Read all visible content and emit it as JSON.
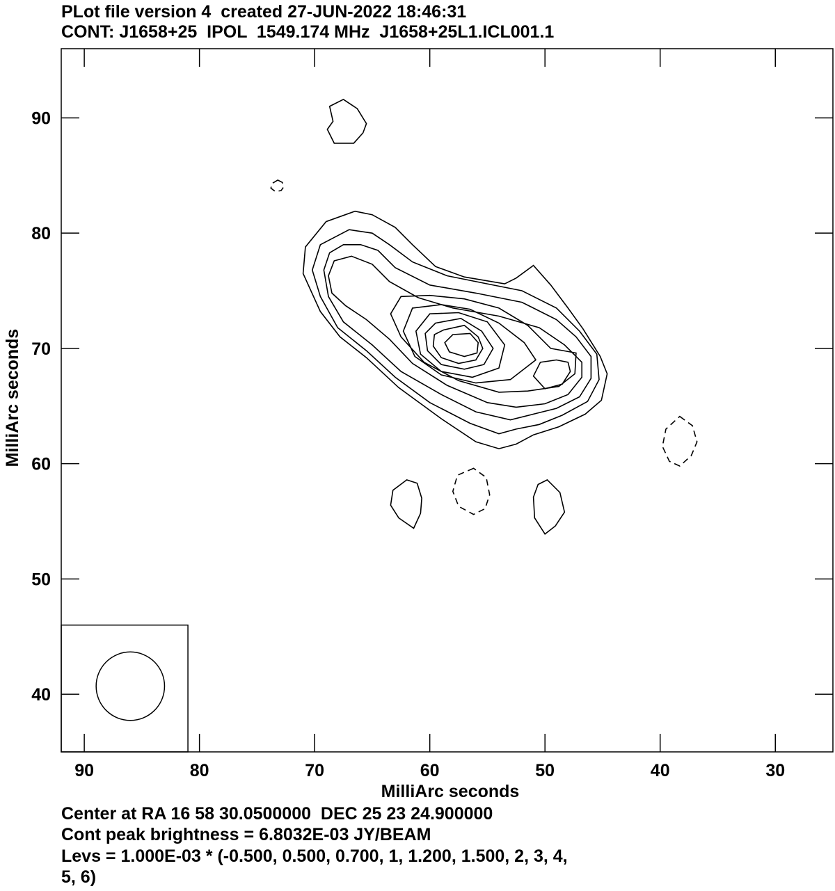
{
  "header": {
    "line1": "PLot file version 4  created 27-JUN-2022 18:46:31",
    "line2": "CONT: J1658+25  IPOL  1549.174 MHz  J1658+25L1.ICL001.1"
  },
  "footer": {
    "line1": "Center at RA 16 58 30.0500000  DEC 25 23 24.900000",
    "line2": "Cont peak brightness = 6.8032E-03 JY/BEAM",
    "line3": "Levs = 1.000E-03 * (-0.500, 0.500, 0.700, 1, 1.200, 1.500, 2, 3, 4,",
    "line4": "5, 6)"
  },
  "chart_data": {
    "type": "contour",
    "xlabel": "MilliArc seconds",
    "ylabel": "MilliArc seconds",
    "xlim": [
      92,
      25
    ],
    "ylim": [
      35,
      96
    ],
    "xticks": [
      90,
      80,
      70,
      60,
      50,
      40,
      30
    ],
    "yticks": [
      40,
      50,
      60,
      70,
      80,
      90
    ],
    "peak_brightness_jy_per_beam": 0.0068032,
    "levels_multiplier": 0.001,
    "levels": [
      -0.5,
      0.5,
      0.7,
      1,
      1.2,
      1.5,
      2,
      3,
      4,
      5,
      6
    ],
    "beam": {
      "center": [
        86,
        40.7
      ],
      "box_x": [
        92,
        81
      ],
      "box_y": [
        35,
        46
      ]
    },
    "contours": [
      {
        "name": "blob-top",
        "level": 0.5,
        "points": [
          [
            68.7,
            91.0
          ],
          [
            67.5,
            91.6
          ],
          [
            66.3,
            90.8
          ],
          [
            65.5,
            89.5
          ],
          [
            65.8,
            88.7
          ],
          [
            66.6,
            87.8
          ],
          [
            68.3,
            87.8
          ],
          [
            68.9,
            89.0
          ],
          [
            68.4,
            89.7
          ]
        ]
      },
      {
        "name": "neg-small",
        "level": -0.5,
        "points": [
          [
            73.2,
            84.6
          ],
          [
            72.8,
            84.4
          ],
          [
            72.7,
            84.0
          ],
          [
            72.9,
            83.7
          ],
          [
            73.4,
            83.6
          ],
          [
            73.8,
            83.9
          ],
          [
            73.7,
            84.3
          ]
        ]
      },
      {
        "name": "blob-bl",
        "level": 0.5,
        "points": [
          [
            62.0,
            58.6
          ],
          [
            63.2,
            57.7
          ],
          [
            63.4,
            56.4
          ],
          [
            62.7,
            55.3
          ],
          [
            61.4,
            54.4
          ],
          [
            60.8,
            55.7
          ],
          [
            60.7,
            57.0
          ],
          [
            61.1,
            58.3
          ]
        ]
      },
      {
        "name": "blob-br",
        "level": 0.5,
        "points": [
          [
            49.8,
            58.6
          ],
          [
            48.7,
            57.5
          ],
          [
            48.3,
            55.8
          ],
          [
            49.1,
            54.6
          ],
          [
            50.0,
            53.9
          ],
          [
            50.9,
            55.3
          ],
          [
            51.0,
            57.1
          ],
          [
            50.6,
            58.2
          ]
        ]
      },
      {
        "name": "neg-bc",
        "level": -0.5,
        "points": [
          [
            56.2,
            59.6
          ],
          [
            57.6,
            59.0
          ],
          [
            58.0,
            57.6
          ],
          [
            57.5,
            56.3
          ],
          [
            56.2,
            55.6
          ],
          [
            55.2,
            56.1
          ],
          [
            54.8,
            57.3
          ],
          [
            55.1,
            58.8
          ]
        ]
      },
      {
        "name": "neg-right",
        "level": -0.5,
        "points": [
          [
            38.3,
            64.1
          ],
          [
            37.2,
            63.3
          ],
          [
            36.8,
            61.9
          ],
          [
            37.3,
            60.7
          ],
          [
            38.3,
            59.8
          ],
          [
            39.2,
            60.2
          ],
          [
            39.8,
            61.5
          ],
          [
            39.5,
            63.0
          ]
        ]
      },
      {
        "name": "lvl-0.5",
        "level": 0.5,
        "points": [
          [
            66.5,
            81.9
          ],
          [
            65.0,
            81.6
          ],
          [
            63.0,
            80.5
          ],
          [
            61.5,
            79.0
          ],
          [
            59.5,
            77.1
          ],
          [
            57.0,
            76.2
          ],
          [
            53.5,
            75.6
          ],
          [
            52.5,
            76.1
          ],
          [
            51.0,
            77.2
          ],
          [
            49.5,
            75.5
          ],
          [
            48.0,
            73.5
          ],
          [
            46.7,
            71.7
          ],
          [
            45.2,
            69.3
          ],
          [
            44.6,
            67.8
          ],
          [
            45.1,
            65.5
          ],
          [
            46.5,
            64.3
          ],
          [
            48.8,
            63.2
          ],
          [
            51.0,
            62.5
          ],
          [
            52.5,
            61.7
          ],
          [
            54.0,
            61.3
          ],
          [
            56.0,
            61.9
          ],
          [
            59.0,
            63.9
          ],
          [
            62.7,
            66.6
          ],
          [
            65.5,
            69.2
          ],
          [
            67.8,
            71.0
          ],
          [
            69.5,
            73.2
          ],
          [
            71.0,
            76.5
          ],
          [
            70.8,
            78.8
          ],
          [
            69.0,
            81.0
          ]
        ]
      },
      {
        "name": "lvl-0.7",
        "level": 0.7,
        "points": [
          [
            67.0,
            80.3
          ],
          [
            65.0,
            80.0
          ],
          [
            63.5,
            79.0
          ],
          [
            61.5,
            77.5
          ],
          [
            58.5,
            76.3
          ],
          [
            55.0,
            75.6
          ],
          [
            52.0,
            75.0
          ],
          [
            49.0,
            73.5
          ],
          [
            47.0,
            71.5
          ],
          [
            45.5,
            69.5
          ],
          [
            45.3,
            67.3
          ],
          [
            46.3,
            65.4
          ],
          [
            48.5,
            64.2
          ],
          [
            50.5,
            63.4
          ],
          [
            52.5,
            63.0
          ],
          [
            54.0,
            62.6
          ],
          [
            56.5,
            63.5
          ],
          [
            60.0,
            65.3
          ],
          [
            63.0,
            67.5
          ],
          [
            65.5,
            69.8
          ],
          [
            68.0,
            71.8
          ],
          [
            69.5,
            74.5
          ],
          [
            70.2,
            76.8
          ],
          [
            69.5,
            79.0
          ]
        ]
      },
      {
        "name": "lvl-1",
        "level": 1,
        "points": [
          [
            67.5,
            79.0
          ],
          [
            66.0,
            79.0
          ],
          [
            64.5,
            78.5
          ],
          [
            63.0,
            77.0
          ],
          [
            60.0,
            75.5
          ],
          [
            56.0,
            74.8
          ],
          [
            52.0,
            74.0
          ],
          [
            49.0,
            72.5
          ],
          [
            47.3,
            71.0
          ],
          [
            46.0,
            69.3
          ],
          [
            46.0,
            67.4
          ],
          [
            47.0,
            65.8
          ],
          [
            49.0,
            64.8
          ],
          [
            51.0,
            64.3
          ],
          [
            53.0,
            63.8
          ],
          [
            56.0,
            64.5
          ],
          [
            59.0,
            66.0
          ],
          [
            62.5,
            68.0
          ],
          [
            65.0,
            70.3
          ],
          [
            67.5,
            72.3
          ],
          [
            68.8,
            74.5
          ],
          [
            69.2,
            76.8
          ],
          [
            68.7,
            78.3
          ]
        ]
      },
      {
        "name": "lvl-1.2",
        "level": 1.2,
        "points": [
          [
            68.3,
            77.6
          ],
          [
            66.8,
            78.0
          ],
          [
            65.0,
            77.3
          ],
          [
            63.5,
            75.8
          ],
          [
            61.0,
            74.4
          ],
          [
            58.0,
            73.5
          ],
          [
            54.0,
            72.8
          ],
          [
            50.5,
            71.8
          ],
          [
            48.3,
            70.3
          ],
          [
            46.8,
            68.8
          ],
          [
            46.8,
            67.5
          ],
          [
            48.0,
            66.0
          ],
          [
            50.0,
            65.2
          ],
          [
            52.5,
            64.9
          ],
          [
            55.0,
            65.3
          ],
          [
            58.5,
            66.8
          ],
          [
            61.5,
            68.7
          ],
          [
            63.5,
            70.8
          ],
          [
            65.5,
            72.5
          ],
          [
            67.3,
            73.7
          ],
          [
            68.5,
            74.8
          ],
          [
            68.8,
            76.3
          ]
        ]
      },
      {
        "name": "lvl-1.5",
        "level": 1.5,
        "points": [
          [
            62.5,
            74.5
          ],
          [
            60.0,
            74.6
          ],
          [
            57.0,
            74.3
          ],
          [
            54.0,
            73.5
          ],
          [
            51.5,
            72.0
          ],
          [
            49.5,
            70.0
          ],
          [
            47.3,
            69.6
          ],
          [
            47.4,
            67.8
          ],
          [
            48.8,
            66.7
          ],
          [
            51.5,
            66.3
          ],
          [
            54.0,
            66.2
          ],
          [
            57.5,
            67.2
          ],
          [
            60.5,
            68.8
          ],
          [
            62.5,
            71.0
          ],
          [
            63.4,
            73.0
          ]
        ]
      },
      {
        "name": "lvl-2",
        "level": 2,
        "points": [
          [
            61.5,
            73.5
          ],
          [
            59.0,
            73.8
          ],
          [
            56.5,
            73.4
          ],
          [
            54.0,
            72.2
          ],
          [
            51.8,
            70.5
          ],
          [
            50.8,
            69.0
          ],
          [
            53.0,
            67.3
          ],
          [
            56.0,
            67.0
          ],
          [
            59.0,
            67.7
          ],
          [
            61.3,
            69.3
          ],
          [
            62.3,
            71.5
          ]
        ]
      },
      {
        "name": "lvl-3",
        "level": 3,
        "points": [
          [
            60.0,
            73.0
          ],
          [
            57.5,
            73.1
          ],
          [
            55.0,
            72.3
          ],
          [
            53.5,
            70.3
          ],
          [
            54.0,
            68.3
          ],
          [
            56.3,
            67.5
          ],
          [
            59.0,
            68.0
          ],
          [
            60.8,
            69.5
          ],
          [
            61.2,
            71.5
          ]
        ]
      },
      {
        "name": "lvl-4",
        "level": 4,
        "points": [
          [
            59.5,
            72.2
          ],
          [
            57.3,
            72.6
          ],
          [
            55.5,
            71.5
          ],
          [
            54.5,
            70.0
          ],
          [
            55.3,
            68.6
          ],
          [
            57.0,
            68.2
          ],
          [
            59.0,
            68.6
          ],
          [
            60.2,
            69.8
          ],
          [
            60.4,
            71.3
          ]
        ]
      },
      {
        "name": "lvl-5",
        "level": 5,
        "points": [
          [
            58.8,
            71.6
          ],
          [
            57.0,
            72.0
          ],
          [
            55.8,
            71.0
          ],
          [
            55.4,
            70.0
          ],
          [
            56.0,
            69.0
          ],
          [
            57.5,
            68.7
          ],
          [
            59.0,
            69.2
          ],
          [
            59.7,
            70.2
          ],
          [
            59.6,
            71.2
          ]
        ]
      },
      {
        "name": "lvl-6",
        "level": 6,
        "points": [
          [
            58.0,
            71.2
          ],
          [
            56.5,
            71.3
          ],
          [
            55.8,
            70.5
          ],
          [
            55.9,
            69.6
          ],
          [
            57.0,
            69.3
          ],
          [
            58.3,
            69.7
          ],
          [
            58.7,
            70.5
          ]
        ]
      },
      {
        "name": "lvl-1.5b",
        "level": 1.5,
        "points": [
          [
            48.0,
            68.8
          ],
          [
            47.8,
            68.0
          ],
          [
            48.5,
            66.9
          ],
          [
            50.0,
            66.5
          ],
          [
            51.0,
            67.6
          ],
          [
            50.4,
            68.8
          ],
          [
            49.0,
            69.0
          ]
        ]
      }
    ]
  }
}
